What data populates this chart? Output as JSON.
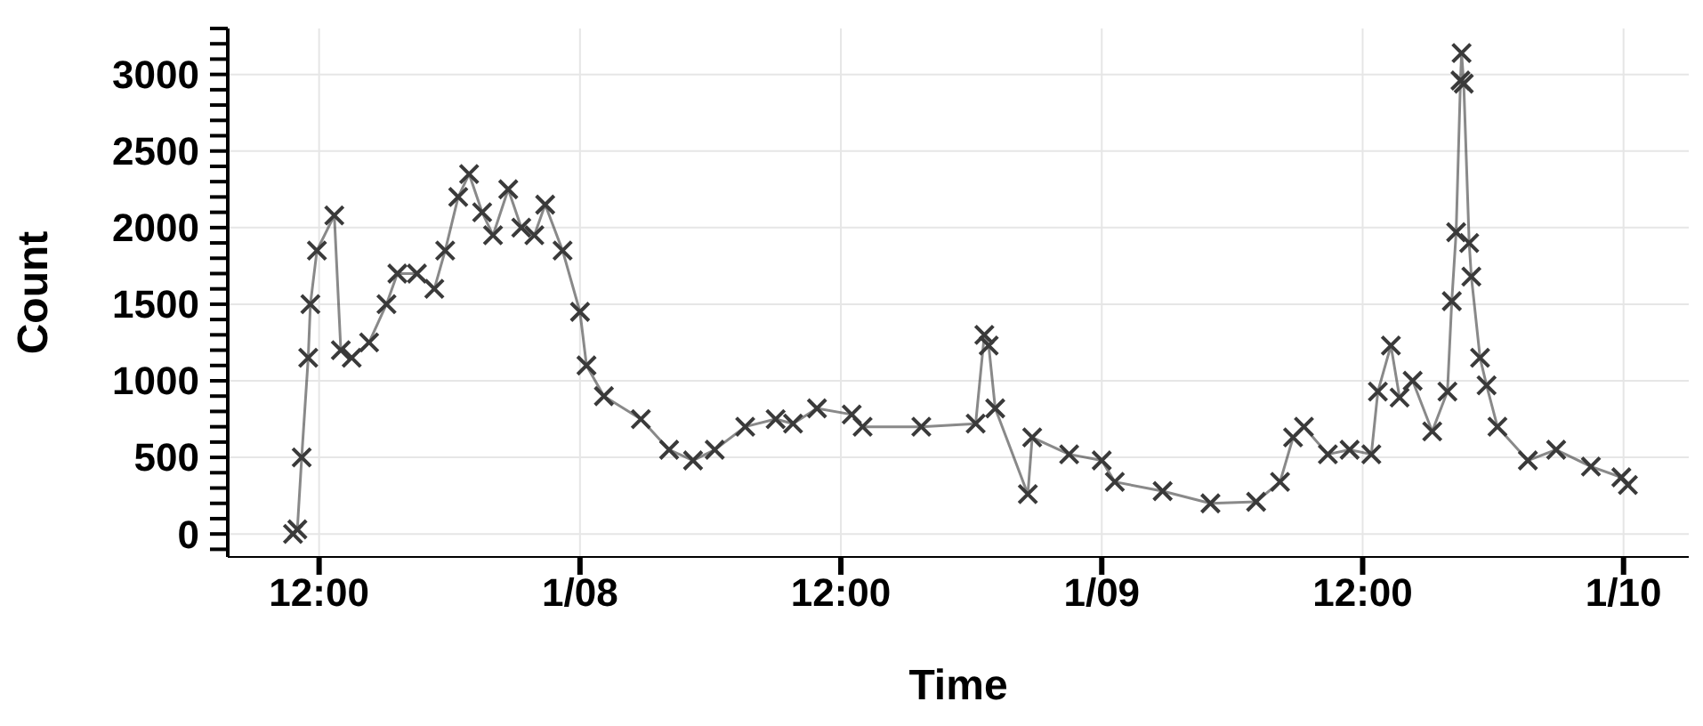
{
  "chart_data": {
    "type": "line",
    "xlabel": "Time",
    "ylabel": "Count",
    "marker": "cross",
    "line_style": "solid",
    "grid": true,
    "xlim": [
      "--01-07T07:48",
      "--01-10T03:00"
    ],
    "xticks": [
      {
        "value": "--01-07T12:00",
        "label": "12:00"
      },
      {
        "value": "--01-08",
        "label": "1/08"
      },
      {
        "value": "--01-08T12:00",
        "label": "12:00"
      },
      {
        "value": "--01-09",
        "label": "1/09"
      },
      {
        "value": "--01-09T12:00",
        "label": "12:00"
      },
      {
        "value": "--01-10",
        "label": "1/10"
      }
    ],
    "ylim": [
      -150,
      3300
    ],
    "yticks": [
      {
        "value": -100,
        "label": null
      },
      0,
      {
        "value": 100,
        "label": null
      },
      {
        "value": 200,
        "label": null
      },
      {
        "value": 300,
        "label": null
      },
      {
        "value": 400,
        "label": null
      },
      500,
      {
        "value": 600,
        "label": null
      },
      {
        "value": 700,
        "label": null
      },
      {
        "value": 800,
        "label": null
      },
      {
        "value": 900,
        "label": null
      },
      1000,
      {
        "value": 1100,
        "label": null
      },
      {
        "value": 1200,
        "label": null
      },
      {
        "value": 1300,
        "label": null
      },
      {
        "value": 1400,
        "label": null
      },
      1500,
      {
        "value": 1600,
        "label": null
      },
      {
        "value": 1700,
        "label": null
      },
      {
        "value": 1800,
        "label": null
      },
      {
        "value": 1900,
        "label": null
      },
      2000,
      {
        "value": 2100,
        "label": null
      },
      {
        "value": 2200,
        "label": null
      },
      {
        "value": 2300,
        "label": null
      },
      {
        "value": 2400,
        "label": null
      },
      2500,
      {
        "value": 2600,
        "label": null
      },
      {
        "value": 2700,
        "label": null
      },
      {
        "value": 2800,
        "label": null
      },
      {
        "value": 2900,
        "label": null
      },
      3000,
      {
        "value": 3100,
        "label": null
      },
      {
        "value": 3200,
        "label": null
      },
      {
        "value": 3300,
        "label": null
      }
    ],
    "series": [
      {
        "color": "#3a3a3a",
        "x": [
          "--01-07T10:48",
          "--01-07T11:00",
          "--01-07T11:12",
          "--01-07T11:30",
          "--01-07T11:36",
          "--01-07T11:54",
          "--01-07T12:42",
          "--01-07T13:00",
          "--01-07T13:30",
          "--01-07T14:18",
          "--01-07T15:06",
          "--01-07T15:36",
          "--01-07T16:30",
          "--01-07T17:18",
          "--01-07T17:48",
          "--01-07T18:24",
          "--01-07T18:54",
          "--01-07T19:30",
          "--01-07T20:00",
          "--01-07T20:42",
          "--01-07T21:18",
          "--01-07T21:54",
          "--01-07T22:24",
          "--01-07T23:12",
          "--01-08T00:00",
          "--01-08T00:18",
          "--01-08T01:06",
          "--01-08T02:48",
          "--01-08T04:06",
          "--01-08T05:12",
          "--01-08T06:12",
          "--01-08T07:36",
          "--01-08T09:00",
          "--01-08T09:48",
          "--01-08T10:54",
          "--01-08T12:30",
          "--01-08T13:00",
          "--01-08T15:42",
          "--01-08T18:12",
          "--01-08T18:36",
          "--01-08T18:48",
          "--01-08T19:06",
          "--01-08T20:36",
          "--01-08T20:48",
          "--01-08T22:30",
          "--01-09T00:00",
          "--01-09T00:36",
          "--01-09T02:48",
          "--01-09T05:00",
          "--01-09T07:06",
          "--01-09T08:12",
          "--01-09T08:48",
          "--01-09T09:18",
          "--01-09T10:24",
          "--01-09T11:24",
          "--01-09T12:24",
          "--01-09T12:42",
          "--01-09T13:18",
          "--01-09T13:42",
          "--01-09T14:18",
          "--01-09T15:12",
          "--01-09T15:54",
          "--01-09T16:06",
          "--01-09T16:18",
          "--01-09T16:30",
          "--01-09T16:33",
          "--01-09T16:39",
          "--01-09T16:54",
          "--01-09T17:00",
          "--01-09T17:24",
          "--01-09T17:42",
          "--01-09T18:12",
          "--01-09T19:36",
          "--01-09T20:54",
          "--01-09T22:30",
          "--01-09T23:54",
          "--01-10T00:12"
        ],
        "values": [
          0,
          30,
          500,
          1150,
          1500,
          1850,
          2080,
          1200,
          1150,
          1250,
          1500,
          1700,
          1700,
          1600,
          1850,
          2200,
          2350,
          2100,
          1950,
          2250,
          2000,
          1950,
          2150,
          1850,
          1450,
          1100,
          900,
          750,
          550,
          480,
          550,
          700,
          750,
          720,
          820,
          780,
          700,
          700,
          720,
          1300,
          1230,
          820,
          260,
          630,
          520,
          480,
          340,
          280,
          200,
          210,
          340,
          630,
          700,
          520,
          550,
          520,
          930,
          1230,
          890,
          1000,
          670,
          930,
          1520,
          1970,
          2960,
          3140,
          2940,
          1900,
          1680,
          1150,
          970,
          700,
          480,
          550,
          440,
          370,
          320
        ]
      }
    ]
  }
}
